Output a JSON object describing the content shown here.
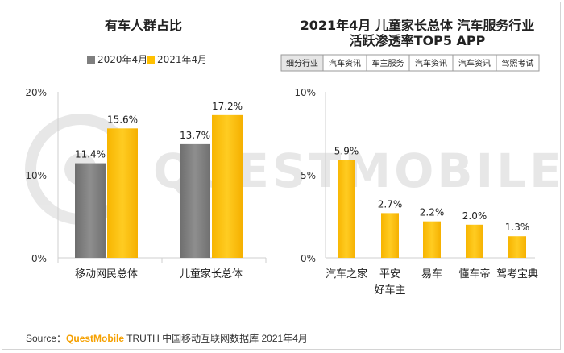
{
  "source": {
    "prefix": "Source：",
    "brand": "QuestMobile",
    "suffix": " TRUTH 中国移动互联网数据库 2021年4月"
  },
  "watermark": "QUESTMOBILE",
  "colors": {
    "series_2020": "#7f7f7f",
    "series_2021": "#ffc000",
    "axis": "#cfcfcf",
    "text": "#333333"
  },
  "chart_data": [
    {
      "type": "bar",
      "title": "有车人群占比",
      "categories": [
        "移动网民总体",
        "儿童家长总体"
      ],
      "series": [
        {
          "name": "2020年4月",
          "values": [
            11.4,
            13.7
          ],
          "labels": [
            "11.4%",
            "13.7%"
          ]
        },
        {
          "name": "2021年4月",
          "values": [
            15.6,
            17.2
          ],
          "labels": [
            "15.6%",
            "17.2%"
          ]
        }
      ],
      "ylim": [
        0,
        20
      ],
      "yticks": [
        "0%",
        "10%",
        "20%"
      ],
      "grid": false,
      "legend": "top-center"
    },
    {
      "type": "bar",
      "title_lines": [
        "2021年4月 儿童家长总体 汽车服务行业",
        "活跃渗透率TOP5 APP"
      ],
      "table_header": [
        "细分行业",
        "汽车资讯",
        "车主服务",
        "汽车资讯",
        "汽车资讯",
        "驾照考试"
      ],
      "categories": [
        [
          "汽车之家"
        ],
        [
          "平安",
          "好车主"
        ],
        [
          "易车"
        ],
        [
          "懂车帝"
        ],
        [
          "驾考宝典"
        ]
      ],
      "series": [
        {
          "values": [
            5.9,
            2.7,
            2.2,
            2.0,
            1.3
          ],
          "labels": [
            "5.9%",
            "2.7%",
            "2.2%",
            "2.0%",
            "1.3%"
          ]
        }
      ],
      "ylim": [
        0,
        10
      ],
      "yticks": [
        "0%",
        "5%",
        "10%"
      ],
      "grid": false
    }
  ]
}
